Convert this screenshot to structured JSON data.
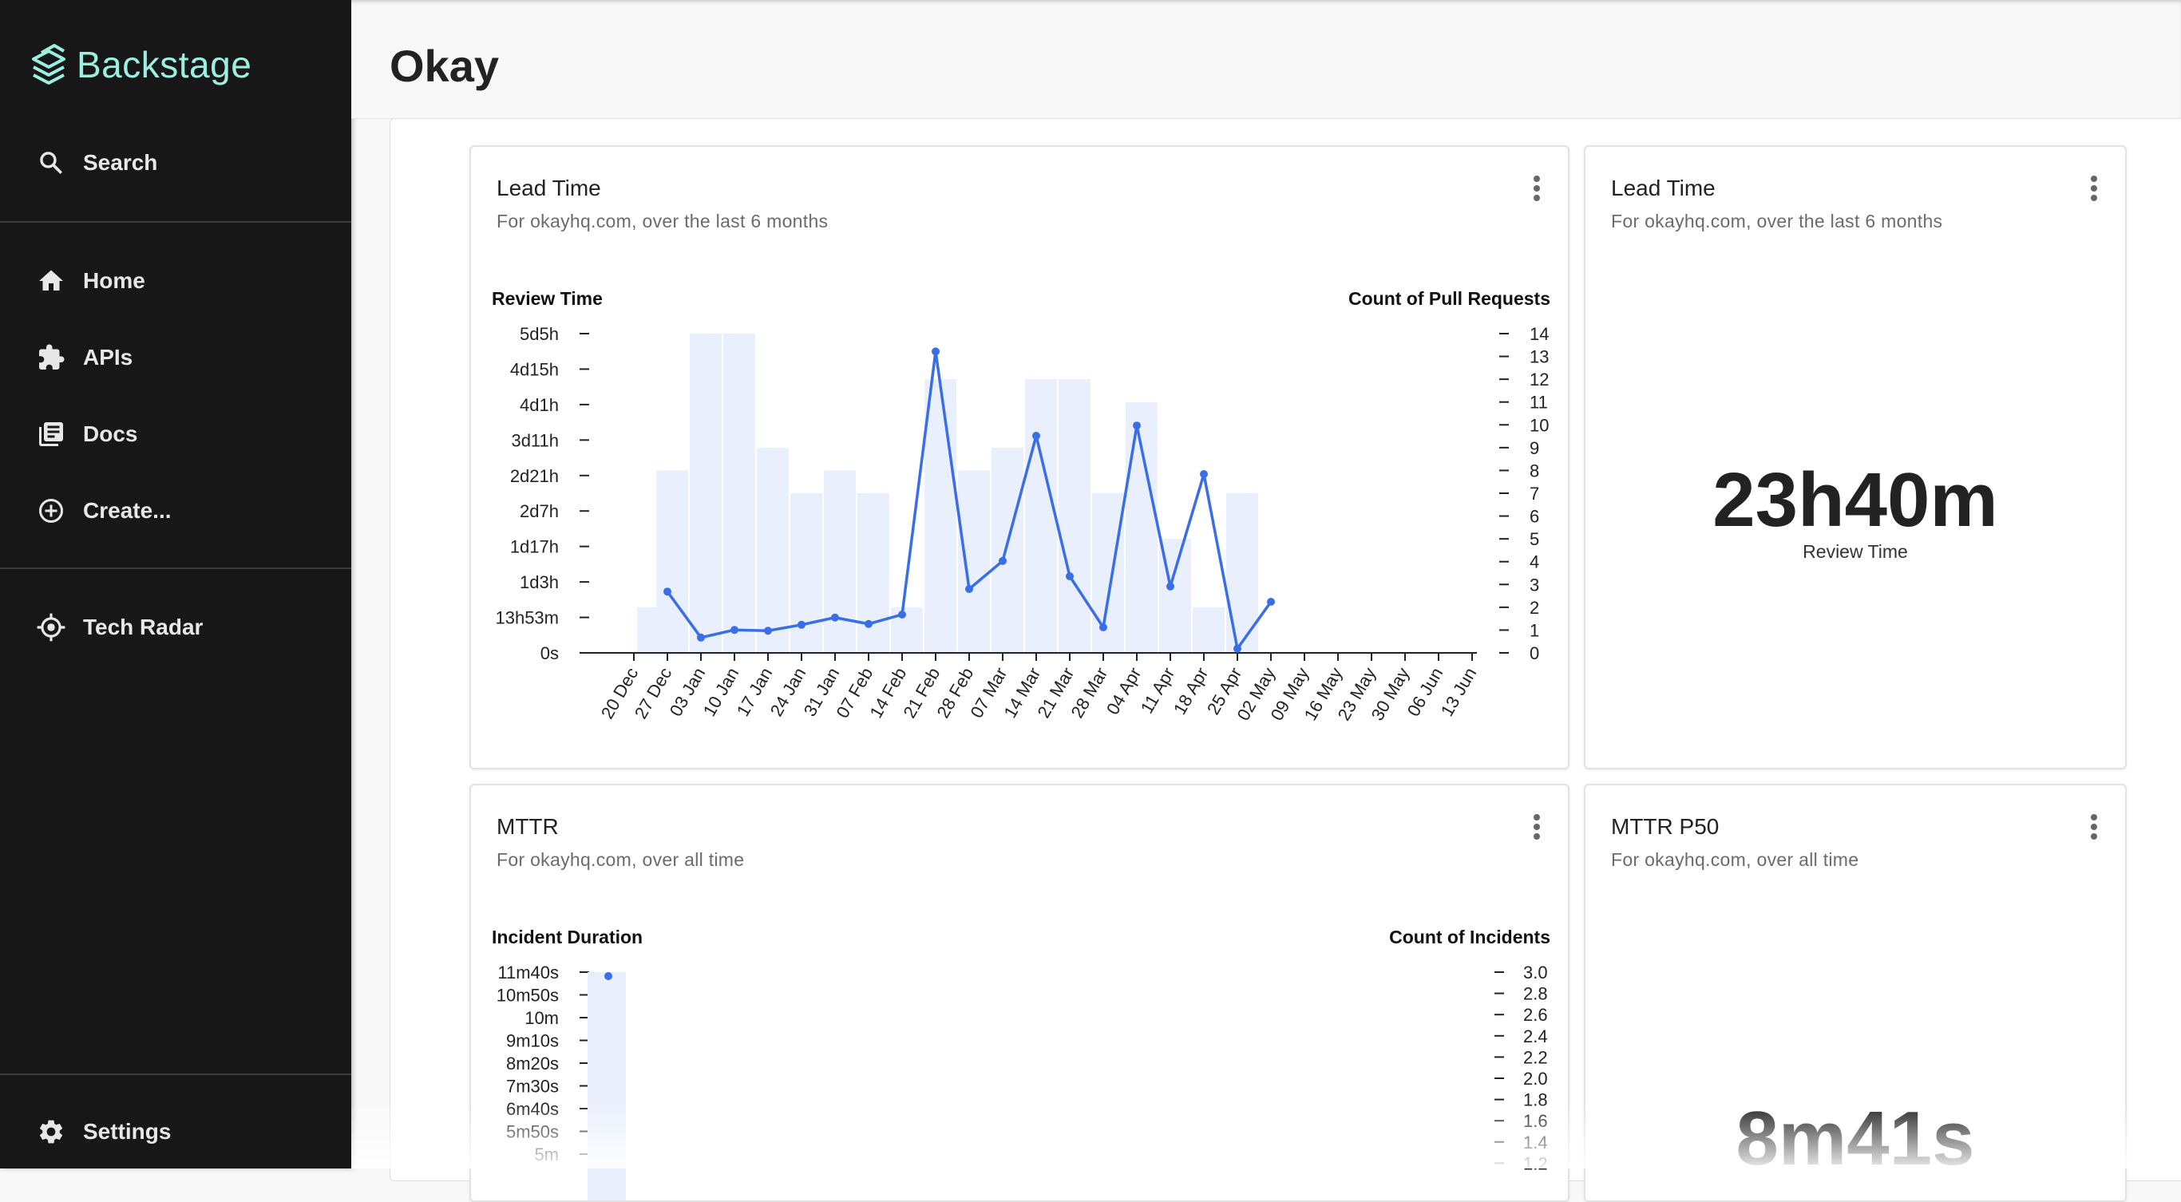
{
  "app": {
    "brand": "Backstage",
    "page_title": "Okay"
  },
  "sidebar": {
    "search_label": "Search",
    "items": [
      {
        "label": "Home",
        "icon": "home-icon"
      },
      {
        "label": "APIs",
        "icon": "puzzle-icon"
      },
      {
        "label": "Docs",
        "icon": "library-books-icon"
      },
      {
        "label": "Create...",
        "icon": "add-circle-outline-icon"
      }
    ],
    "plugins": [
      {
        "label": "Tech Radar",
        "icon": "radar-icon"
      }
    ],
    "settings_label": "Settings"
  },
  "cards": {
    "lead_time_chart": {
      "title": "Lead Time",
      "subtitle": "For okayhq.com, over the last 6 months"
    },
    "lead_time_stat": {
      "title": "Lead Time",
      "subtitle": "For okayhq.com, over the last 6 months",
      "value": "23h40m",
      "caption": "Review Time"
    },
    "mttr_chart": {
      "title": "MTTR",
      "subtitle": "For okayhq.com, over all time"
    },
    "mttr_stat": {
      "title": "MTTR P50",
      "subtitle": "For okayhq.com, over all time",
      "value": "8m41s"
    }
  },
  "colors": {
    "sidebar_bg": "#171717",
    "brand_accent": "#9bf0e1",
    "line": "#3a6ee8",
    "bar": "#e9effc"
  },
  "chart_data": [
    {
      "type": "bar",
      "left_axis_label": "Review Time",
      "right_axis_label": "Count of Pull Requests",
      "left_ticks": [
        "0s",
        "13h53m",
        "1d3h",
        "1d17h",
        "2d7h",
        "2d21h",
        "3d11h",
        "4d1h",
        "4d15h",
        "5d5h"
      ],
      "right_ticks": [
        "0",
        "1",
        "2",
        "3",
        "4",
        "5",
        "6",
        "7",
        "8",
        "9",
        "10",
        "11",
        "12",
        "13",
        "14"
      ],
      "categories": [
        "20 Dec",
        "27 Dec",
        "03 Jan",
        "10 Jan",
        "17 Jan",
        "24 Jan",
        "31 Jan",
        "07 Feb",
        "14 Feb",
        "21 Feb",
        "28 Feb",
        "07 Mar",
        "14 Mar",
        "21 Mar",
        "28 Mar",
        "04 Apr",
        "11 Apr",
        "18 Apr",
        "25 Apr",
        "02 May",
        "09 May",
        "16 May",
        "23 May",
        "30 May",
        "06 Jun",
        "13 Jun"
      ],
      "y_right_lim": [
        0,
        14
      ],
      "bars": [
        {
          "x": "24 Dec",
          "pull_requests": 2
        },
        {
          "x": "28 Dec",
          "pull_requests": 8
        },
        {
          "x": "04 Jan",
          "pull_requests": 14
        },
        {
          "x": "11 Jan",
          "pull_requests": 14
        },
        {
          "x": "18 Jan",
          "pull_requests": 9
        },
        {
          "x": "25 Jan",
          "pull_requests": 7
        },
        {
          "x": "01 Feb",
          "pull_requests": 8
        },
        {
          "x": "08 Feb",
          "pull_requests": 7
        },
        {
          "x": "15 Feb",
          "pull_requests": 2
        },
        {
          "x": "22 Feb",
          "pull_requests": 12
        },
        {
          "x": "01 Mar",
          "pull_requests": 8
        },
        {
          "x": "08 Mar",
          "pull_requests": 9
        },
        {
          "x": "15 Mar",
          "pull_requests": 12
        },
        {
          "x": "22 Mar",
          "pull_requests": 12
        },
        {
          "x": "29 Mar",
          "pull_requests": 7
        },
        {
          "x": "05 Apr",
          "pull_requests": 11
        },
        {
          "x": "12 Apr",
          "pull_requests": 5
        },
        {
          "x": "19 Apr",
          "pull_requests": 2
        },
        {
          "x": "26 Apr",
          "pull_requests": 7
        }
      ],
      "review_time_points": [
        {
          "x": "27 Dec",
          "y": "24h"
        },
        {
          "x": "03 Jan",
          "y": "6h"
        },
        {
          "x": "10 Jan",
          "y": "9h"
        },
        {
          "x": "17 Jan",
          "y": "8h40m"
        },
        {
          "x": "24 Jan",
          "y": "11h"
        },
        {
          "x": "31 Jan",
          "y": "13h50m"
        },
        {
          "x": "07 Feb",
          "y": "11h20m"
        },
        {
          "x": "14 Feb",
          "y": "15h"
        },
        {
          "x": "21 Feb",
          "y": "4d22h"
        },
        {
          "x": "28 Feb",
          "y": "1d1h"
        },
        {
          "x": "07 Mar",
          "y": "1d12h"
        },
        {
          "x": "14 Mar",
          "y": "3d13h"
        },
        {
          "x": "21 Mar",
          "y": "1d6h"
        },
        {
          "x": "28 Mar",
          "y": "10h"
        },
        {
          "x": "04 Apr",
          "y": "3d17h"
        },
        {
          "x": "11 Apr",
          "y": "1d2h"
        },
        {
          "x": "18 Apr",
          "y": "2d22h"
        },
        {
          "x": "25 Apr",
          "y": "1h40m"
        },
        {
          "x": "02 May",
          "y": "20h"
        }
      ]
    },
    {
      "type": "bar",
      "left_axis_label": "Incident Duration",
      "right_axis_label": "Count of Incidents",
      "left_ticks": [
        "5m",
        "5m50s",
        "6m40s",
        "7m30s",
        "8m20s",
        "9m10s",
        "10m",
        "10m50s",
        "11m40s"
      ],
      "right_ticks": [
        "1.2",
        "1.4",
        "1.6",
        "1.8",
        "2.0",
        "2.2",
        "2.4",
        "2.6",
        "2.8",
        "3.0"
      ],
      "bars": [
        {
          "incidents": 3.0
        }
      ],
      "points": [
        {
          "duration": "11m40s"
        }
      ]
    }
  ]
}
